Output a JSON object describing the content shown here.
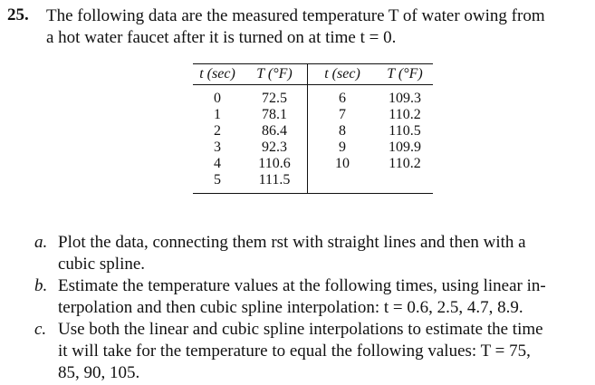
{
  "problem": {
    "number": "25.",
    "statement_lines": [
      "The following data are the measured temperature T of water  owing from",
      "a hot water faucet after it is turned on at time t = 0."
    ]
  },
  "table": {
    "headers": [
      "t (sec)",
      "T (°F)",
      "t (sec)",
      "T (°F)"
    ],
    "rows": [
      [
        "0",
        "72.5",
        "6",
        "109.3"
      ],
      [
        "1",
        "78.1",
        "7",
        "110.2"
      ],
      [
        "2",
        "86.4",
        "8",
        "110.5"
      ],
      [
        "3",
        "92.3",
        "9",
        "109.9"
      ],
      [
        "4",
        "110.6",
        "10",
        "110.2"
      ],
      [
        "5",
        "111.5",
        "",
        ""
      ]
    ]
  },
  "parts": [
    {
      "label": "a.",
      "lines": [
        "Plot the data, connecting them  rst with straight lines and then with a",
        "cubic spline."
      ]
    },
    {
      "label": "b.",
      "lines": [
        "Estimate the temperature values at the following times, using linear in-",
        "terpolation and then cubic spline interpolation: t = 0.6, 2.5, 4.7, 8.9."
      ]
    },
    {
      "label": "c.",
      "lines": [
        "Use both the linear and cubic spline interpolations to estimate the time",
        "it will take for the temperature to equal the following values: T = 75,",
        "85, 90, 105."
      ]
    }
  ]
}
